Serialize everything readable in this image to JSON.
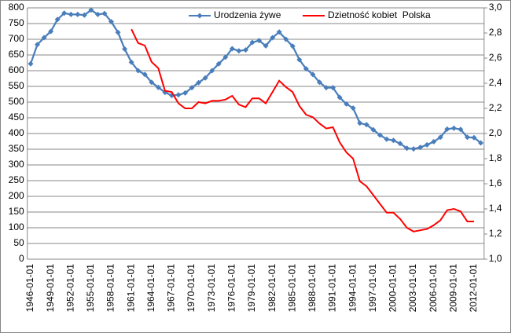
{
  "chart_data": {
    "type": "line",
    "categories": [
      "1946-01-01",
      null,
      null,
      "1949-01-01",
      null,
      null,
      "1952-01-01",
      null,
      null,
      "1955-01-01",
      null,
      null,
      "1958-01-01",
      null,
      null,
      "1961-01-01",
      null,
      null,
      "1964-01-01",
      null,
      null,
      "1967-01-01",
      null,
      null,
      "1970-01-01",
      null,
      null,
      "1973-01-01",
      null,
      null,
      "1976-01-01",
      null,
      null,
      "1979-01-01",
      null,
      null,
      "1982-01-01",
      null,
      null,
      "1985-01-01",
      null,
      null,
      "1988-01-01",
      null,
      null,
      "1991-01-01",
      null,
      null,
      "1994-01-01",
      null,
      null,
      "1997-01-01",
      null,
      null,
      "2000-01-01",
      null,
      null,
      "2003-01-01",
      null,
      null,
      "2006-01-01",
      null,
      null,
      "2009-01-01",
      null,
      null,
      "2012-01-01",
      null
    ],
    "series": [
      {
        "name": "Urodzenia żywe",
        "color": "#4a7ebb",
        "values": [
          622,
          683,
          705,
          725,
          763,
          783,
          779,
          779,
          777,
          793,
          779,
          782,
          756,
          722,
          669,
          627,
          600,
          588,
          563,
          547,
          531,
          521,
          523,
          529,
          546,
          562,
          577,
          600,
          622,
          643,
          670,
          663,
          666,
          690,
          696,
          679,
          705,
          723,
          700,
          678,
          635,
          606,
          588,
          563,
          546,
          546,
          515,
          494,
          481,
          433,
          428,
          412,
          395,
          382,
          378,
          368,
          353,
          351,
          356,
          364,
          374,
          388,
          414,
          417,
          413,
          388,
          387,
          370
        ]
      },
      {
        "name": "Dzietność kobiet  Polska",
        "color": "#ff0000",
        "axis": "y2",
        "values": [
          null,
          null,
          null,
          null,
          null,
          null,
          null,
          null,
          null,
          null,
          null,
          null,
          null,
          null,
          null,
          2.83,
          2.72,
          2.7,
          2.57,
          2.52,
          2.34,
          2.33,
          2.24,
          2.2,
          2.2,
          2.25,
          2.24,
          2.26,
          2.26,
          2.27,
          2.3,
          2.23,
          2.21,
          2.28,
          2.28,
          2.24,
          2.33,
          2.42,
          2.37,
          2.33,
          2.22,
          2.15,
          2.13,
          2.08,
          2.04,
          2.05,
          1.93,
          1.85,
          1.8,
          1.62,
          1.58,
          1.51,
          1.44,
          1.37,
          1.37,
          1.32,
          1.25,
          1.22,
          1.23,
          1.24,
          1.27,
          1.31,
          1.39,
          1.4,
          1.38,
          1.3,
          1.3,
          null
        ]
      }
    ],
    "ylim": [
      0,
      800
    ],
    "yticks": [
      0,
      50,
      100,
      150,
      200,
      250,
      300,
      350,
      400,
      450,
      500,
      550,
      600,
      650,
      700,
      750,
      800
    ],
    "y2lim": [
      1.0,
      3.0
    ],
    "y2ticks": [
      {
        "value": 1.0,
        "label": "1,0"
      },
      {
        "value": 1.2,
        "label": "1,2"
      },
      {
        "value": 1.4,
        "label": "1,4"
      },
      {
        "value": 1.6,
        "label": "1,6"
      },
      {
        "value": 1.8,
        "label": "1,8"
      },
      {
        "value": 2.0,
        "label": "2,0"
      },
      {
        "value": 2.2,
        "label": "2,2"
      },
      {
        "value": 2.4,
        "label": "2,4"
      },
      {
        "value": 2.6,
        "label": "2,6"
      },
      {
        "value": 2.8,
        "label": "2,8"
      },
      {
        "value": 3.0,
        "label": "3,0"
      }
    ],
    "grid": true,
    "legend": "top"
  }
}
